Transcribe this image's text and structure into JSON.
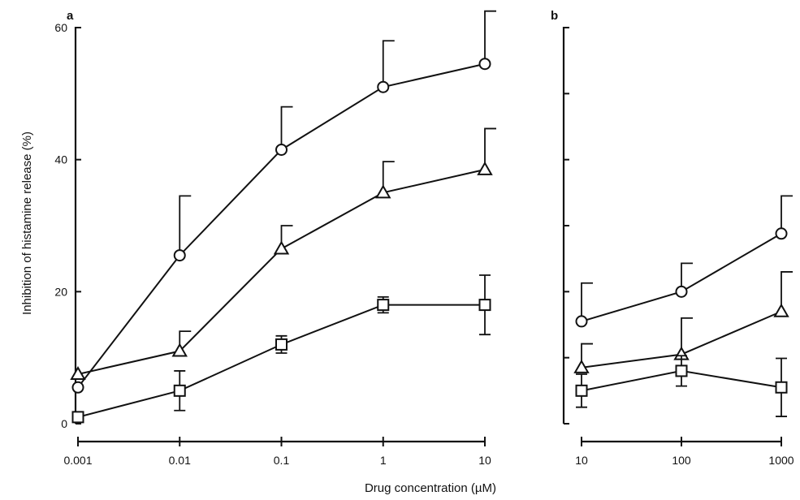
{
  "chart_data": {
    "type": "line",
    "ylabel": "Inhibition of histamine release (%)",
    "xlabel": "Drug concentration (µM)",
    "panels": [
      {
        "label": "a",
        "x_scale": "log",
        "x": [
          0.001,
          0.01,
          0.1,
          1,
          10
        ],
        "x_tick_labels": [
          "0.001",
          "0.01",
          "0.1",
          "1",
          "10"
        ],
        "ylim": [
          0,
          60
        ],
        "y_ticks": [
          0,
          20,
          40,
          60
        ],
        "y_tick_labels": [
          "0",
          "20",
          "40",
          "60"
        ],
        "series": [
          {
            "marker": "circle",
            "values": [
              5.5,
              25.5,
              41.5,
              51,
              54.5
            ],
            "error": [
              0,
              9,
              6.5,
              7,
              8
            ]
          },
          {
            "marker": "triangle",
            "values": [
              7.5,
              11,
              26.5,
              35,
              38.5
            ],
            "error": [
              0,
              3,
              3.5,
              4.7,
              6.2
            ]
          },
          {
            "marker": "square",
            "values": [
              1,
              5,
              12,
              18,
              18
            ],
            "error": [
              0,
              3,
              1.3,
              1.2,
              4.5
            ]
          }
        ]
      },
      {
        "label": "b",
        "x_scale": "log",
        "x": [
          10,
          100,
          1000
        ],
        "x_tick_labels": [
          "10",
          "100",
          "1000"
        ],
        "ylim": [
          0,
          60
        ],
        "y_ticks": [
          0,
          10,
          20,
          30,
          40,
          50,
          60
        ],
        "series": [
          {
            "marker": "circle",
            "values": [
              15.5,
              20,
              28.8
            ],
            "error": [
              5.8,
              4.3,
              5.7
            ]
          },
          {
            "marker": "triangle",
            "values": [
              8.5,
              10.5,
              17
            ],
            "error": [
              3.6,
              5.5,
              6
            ]
          },
          {
            "marker": "square",
            "values": [
              5,
              8,
              5.5
            ],
            "error": [
              2.5,
              2.3,
              4.4
            ]
          }
        ]
      }
    ]
  }
}
